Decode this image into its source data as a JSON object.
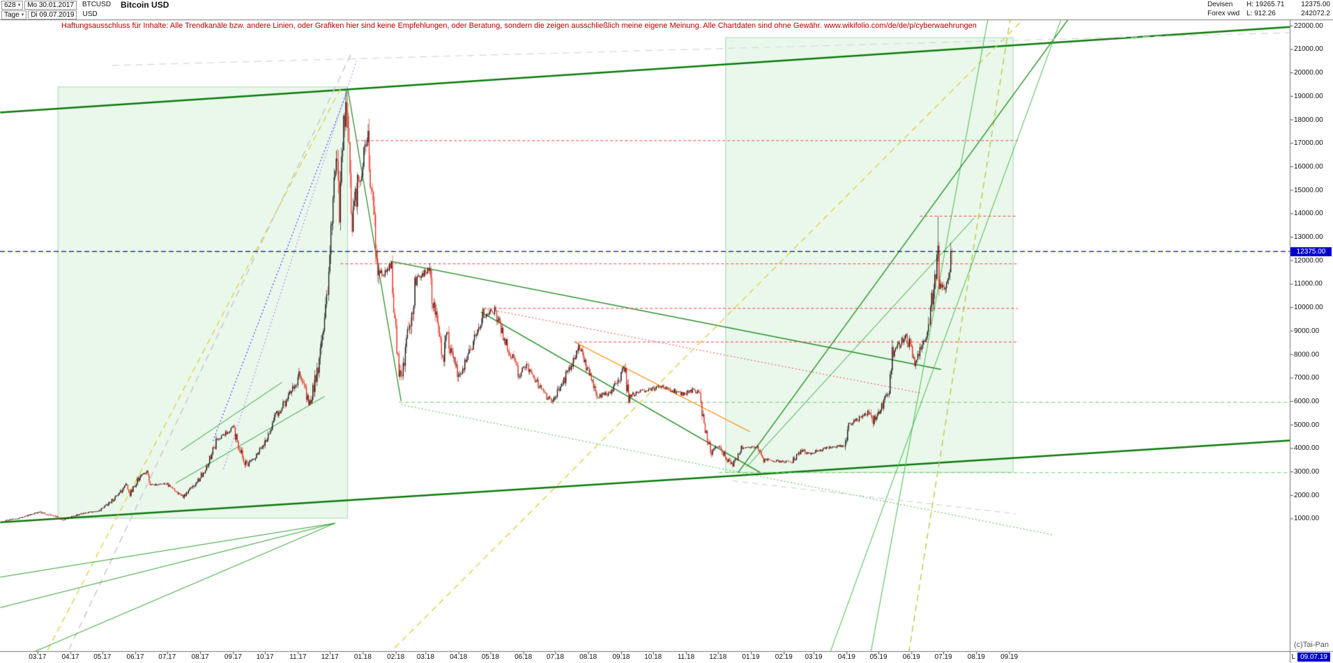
{
  "header": {
    "bars_dropdown": "628",
    "start_date": "Mo 30.01.2017",
    "symbol": "BTCUSD",
    "title": "Bitcoin USD",
    "period_dropdown": "Tage",
    "end_date": "Di 09.07.2019",
    "currency": "USD",
    "feed_line1": "Devisen",
    "feed_line2": "Forex vwd",
    "high": "H: 19265.71",
    "low": "L: 912.26",
    "last": "12375.00",
    "turnover": "242072.2"
  },
  "disclaimer": "Haftungsausschluss für Inhalte: Alle Trendkanäle bzw. andere Linien, oder Grafiken hier sind keine Empfehlungen, oder Beratung, sondern die zeigen ausschließlich meine eigene Meinung. Alle Chartdaten sind ohne Gewähr.  www.wikifolio.com/de/de/p/cyberwaehrungen",
  "watermark": "(c)Tai-Pan",
  "time_axis": {
    "months": [
      "03.17",
      "04.17",
      "05.17",
      "06.17",
      "07.17",
      "08.17",
      "09.17",
      "10.17",
      "11.17",
      "12.17",
      "01.18",
      "02.18",
      "03.18",
      "04.18",
      "05.18",
      "06.18",
      "07.18",
      "08.18",
      "09.18",
      "10.18",
      "11.18",
      "12.18",
      "01.19",
      "02.19",
      "03.19",
      "04.19",
      "05.19",
      "06.19",
      "07.19",
      "08.19",
      "09.19"
    ],
    "last_label_prefix": "L",
    "last_label": "09.07.19"
  },
  "price_axis": {
    "labels": [
      "22000.00",
      "21000.00",
      "20000.00",
      "19000.00",
      "18000.00",
      "17000.00",
      "16000.00",
      "15000.00",
      "14000.00",
      "13000.00",
      "12000.00",
      "11000.00",
      "10000.00",
      "9000.00",
      "8000.00",
      "7000.00",
      "6000.00",
      "5000.00",
      "4000.00",
      "3000.00",
      "2000.00",
      "1000.00"
    ],
    "current": "12375.00"
  },
  "chart_data": {
    "type": "candlestick",
    "title": "Bitcoin USD (BTCUSD), Tageskerzen",
    "x_range": [
      "2017-01-30",
      "2019-07-09"
    ],
    "y_axis": {
      "min": 1000,
      "max": 22000,
      "step": 1000,
      "unit": "USD"
    },
    "current_price": 12375.0,
    "period_high": 19265.71,
    "period_low": 912.26,
    "colors": {
      "up": "#141414",
      "down": "#e03020",
      "current_price_line": "#0000cc",
      "region_fill": "rgba(80,200,100,0.12)",
      "region_border": "rgba(40,160,70,0.35)"
    },
    "price_anchors": [
      [
        "2017-01-30",
        920
      ],
      [
        "2017-02-10",
        985
      ],
      [
        "2017-02-24",
        1180
      ],
      [
        "2017-03-03",
        1275
      ],
      [
        "2017-03-18",
        1080
      ],
      [
        "2017-03-25",
        950
      ],
      [
        "2017-04-10",
        1190
      ],
      [
        "2017-04-28",
        1330
      ],
      [
        "2017-05-10",
        1760
      ],
      [
        "2017-05-24",
        2440
      ],
      [
        "2017-05-27",
        2050
      ],
      [
        "2017-06-06",
        2870
      ],
      [
        "2017-06-12",
        2980
      ],
      [
        "2017-06-15",
        2420
      ],
      [
        "2017-06-30",
        2480
      ],
      [
        "2017-07-16",
        1930
      ],
      [
        "2017-08-01",
        2750
      ],
      [
        "2017-08-17",
        4380
      ],
      [
        "2017-09-01",
        4900
      ],
      [
        "2017-09-14",
        3210
      ],
      [
        "2017-09-29",
        4170
      ],
      [
        "2017-10-12",
        5440
      ],
      [
        "2017-10-21",
        6000
      ],
      [
        "2017-11-02",
        7080
      ],
      [
        "2017-11-12",
        5950
      ],
      [
        "2017-11-25",
        8750
      ],
      [
        "2017-12-07",
        16850
      ],
      [
        "2017-12-10",
        14300
      ],
      [
        "2017-12-16",
        19260
      ],
      [
        "2017-12-22",
        13660
      ],
      [
        "2017-12-28",
        15400
      ],
      [
        "2018-01-06",
        17150
      ],
      [
        "2018-01-16",
        11300
      ],
      [
        "2018-01-28",
        11800
      ],
      [
        "2018-02-05",
        6940
      ],
      [
        "2018-02-20",
        11240
      ],
      [
        "2018-03-04",
        11500
      ],
      [
        "2018-03-18",
        7870
      ],
      [
        "2018-03-21",
        8900
      ],
      [
        "2018-04-01",
        6930
      ],
      [
        "2018-04-24",
        9650
      ],
      [
        "2018-05-05",
        9850
      ],
      [
        "2018-05-28",
        7130
      ],
      [
        "2018-06-02",
        7640
      ],
      [
        "2018-06-28",
        5870
      ],
      [
        "2018-07-08",
        6770
      ],
      [
        "2018-07-24",
        8390
      ],
      [
        "2018-08-10",
        6190
      ],
      [
        "2018-08-22",
        6370
      ],
      [
        "2018-09-04",
        7360
      ],
      [
        "2018-09-08",
        6230
      ],
      [
        "2018-09-25",
        6440
      ],
      [
        "2018-10-10",
        6590
      ],
      [
        "2018-10-29",
        6300
      ],
      [
        "2018-11-07",
        6460
      ],
      [
        "2018-11-14",
        6350
      ],
      [
        "2018-11-19",
        4650
      ],
      [
        "2018-11-25",
        3780
      ],
      [
        "2018-12-01",
        4140
      ],
      [
        "2018-12-15",
        3230
      ],
      [
        "2018-12-24",
        4030
      ],
      [
        "2019-01-06",
        4020
      ],
      [
        "2019-01-13",
        3520
      ],
      [
        "2019-01-28",
        3430
      ],
      [
        "2019-02-08",
        3400
      ],
      [
        "2019-02-18",
        3900
      ],
      [
        "2019-02-24",
        3770
      ],
      [
        "2019-03-16",
        4030
      ],
      [
        "2019-03-30",
        4100
      ],
      [
        "2019-04-03",
        4970
      ],
      [
        "2019-04-23",
        5570
      ],
      [
        "2019-04-26",
        5150
      ],
      [
        "2019-05-11",
        6380
      ],
      [
        "2019-05-14",
        7980
      ],
      [
        "2019-05-27",
        8760
      ],
      [
        "2019-05-31",
        8280
      ],
      [
        "2019-06-04",
        7700
      ],
      [
        "2019-06-16",
        8990
      ],
      [
        "2019-06-22",
        10760
      ],
      [
        "2019-06-26",
        12910
      ],
      [
        "2019-06-27",
        11160
      ],
      [
        "2019-07-02",
        10580
      ],
      [
        "2019-07-09",
        12375
      ]
    ],
    "forced_wicks": [
      {
        "date": "2017-02-04",
        "low": 912.26
      },
      {
        "date": "2017-12-16",
        "high": 19265.71
      },
      {
        "date": "2019-06-26",
        "high": 13880
      }
    ],
    "regions": [
      {
        "from": "2017-03-20",
        "to": "2017-12-18",
        "price_from": 1000,
        "price_to": 19400
      },
      {
        "from": "2018-12-08",
        "to": "2019-09-05",
        "price_from": 2950,
        "price_to": 21500
      }
    ],
    "trendlines": [
      {
        "x1": "2017-01-25",
        "p1": 18300,
        "x2": "2020-05-24",
        "p2": 21950,
        "color": "#0a7a0a",
        "w": 2.5
      },
      {
        "x1": "2017-01-25",
        "p1": 835,
        "x2": "2020-05-24",
        "p2": 4330,
        "color": "#0a7a0a",
        "w": 2.5
      },
      {
        "x1": "2018-01-27",
        "p1": 11960,
        "x2": "2019-06-29",
        "p2": 7350,
        "color": "#1e8c1e",
        "w": 1.4
      },
      {
        "x1": "2018-04-22",
        "p1": 9800,
        "x2": "2019-01-10",
        "p2": 2950,
        "color": "#1e8c1e",
        "w": 1.4
      },
      {
        "x1": "2017-12-18",
        "p1": 19260,
        "x2": "2018-02-06",
        "p2": 6000,
        "color": "#1e8c1e",
        "w": 1.2
      },
      {
        "x1": "2018-02-06",
        "p1": 5850,
        "x2": "2019-10-12",
        "p2": 300,
        "color": "#44bb44",
        "dash": [
          2,
          3
        ],
        "w": 1
      },
      {
        "x1": "2018-02-04",
        "p1": 5950,
        "x2": "2020-05-24",
        "p2": 5950,
        "color": "#66cc66",
        "dash": [
          5,
          4
        ],
        "w": 1
      },
      {
        "x1": "2018-12-02",
        "p1": 2950,
        "x2": "2020-05-24",
        "p2": 2950,
        "color": "#66cc66",
        "dash": [
          5,
          4
        ],
        "w": 1
      },
      {
        "x1": "2017-12-26",
        "p1": 17100,
        "x2": "2019-09-09",
        "p2": 17100,
        "color": "#f04040",
        "dash": [
          4,
          3
        ],
        "w": 1
      },
      {
        "x1": "2019-06-09",
        "p1": 13880,
        "x2": "2019-09-09",
        "p2": 13880,
        "color": "#f04040",
        "dash": [
          4,
          3
        ],
        "w": 1
      },
      {
        "x1": "2017-12-11",
        "p1": 11850,
        "x2": "2019-09-09",
        "p2": 11850,
        "color": "#f04040",
        "dash": [
          4,
          3
        ],
        "w": 1
      },
      {
        "x1": "2018-04-25",
        "p1": 9950,
        "x2": "2019-09-09",
        "p2": 9950,
        "color": "#f04040",
        "dash": [
          4,
          3
        ],
        "w": 1
      },
      {
        "x1": "2018-07-19",
        "p1": 8520,
        "x2": "2019-09-09",
        "p2": 8520,
        "color": "#f04040",
        "dash": [
          4,
          3
        ],
        "w": 1
      },
      {
        "x1": "2018-07-19",
        "p1": 8520,
        "x2": "2018-12-31",
        "p2": 4700,
        "color": "#ff8800",
        "w": 1.3
      },
      {
        "x1": "2018-04-25",
        "p1": 9950,
        "x2": "2019-06-09",
        "p2": 6350,
        "color": "#ee4444",
        "dash": [
          2,
          3
        ],
        "w": 1
      },
      {
        "x1": "2017-08-13",
        "p1": 4300,
        "x2": "2017-12-18",
        "p2": 19265,
        "color": "#4444ff",
        "dash": [
          2,
          3
        ],
        "w": 1.2
      },
      {
        "x1": "2017-08-23",
        "p1": 3100,
        "x2": "2017-12-26",
        "p2": 20500,
        "color": "#9977ee",
        "dash": [
          2,
          3
        ],
        "w": 1
      },
      {
        "x1": "2017-03-06",
        "p1": -5000,
        "x2": "2017-12-12",
        "p2": 19400,
        "color": "#e0d24a",
        "dash": [
          9,
          6
        ],
        "w": 1.4
      },
      {
        "x1": "2018-01-17",
        "p1": -5150,
        "x2": "2019-09-15",
        "p2": 22300,
        "color": "#e0d24a",
        "dash": [
          9,
          6
        ],
        "w": 1.4
      },
      {
        "x1": "2019-05-28",
        "p1": -5150,
        "x2": "2019-09-02",
        "p2": 22300,
        "color": "#b8cc3a",
        "dash": [
          9,
          6
        ],
        "w": 1.4
      },
      {
        "x1": "2019-03-13",
        "p1": -5150,
        "x2": "2019-10-20",
        "p2": 22300,
        "color": "#44bb44",
        "w": 1
      },
      {
        "x1": "2019-04-22",
        "p1": -5150,
        "x2": "2019-08-12",
        "p2": 22300,
        "color": "#44bb44",
        "w": 1
      },
      {
        "x1": "2018-12-20",
        "p1": 2950,
        "x2": "2019-10-27",
        "p2": 22300,
        "color": "#1e8c1e",
        "w": 1.3
      },
      {
        "x1": "2018-12-28",
        "p1": 3200,
        "x2": "2019-07-30",
        "p2": 13800,
        "color": "#2ea02e",
        "w": 1
      },
      {
        "x1": "2017-03-21",
        "p1": -5500,
        "x2": "2017-12-21",
        "p2": 20800,
        "color": "#c9c9c9",
        "dash": [
          10,
          7
        ],
        "w": 1.5
      },
      {
        "x1": "2017-05-10",
        "p1": 20300,
        "x2": "2020-05-24",
        "p2": 21700,
        "color": "#d6d6d6",
        "dash": [
          10,
          7
        ],
        "w": 1.2
      },
      {
        "x1": "2018-12-15",
        "p1": 2600,
        "x2": "2019-09-07",
        "p2": 1200,
        "color": "#cccccc",
        "dash": [
          8,
          6
        ],
        "w": 1
      },
      {
        "x1": "2017-01-25",
        "p1": -2800,
        "x2": "2017-12-06",
        "p2": 800,
        "color": "#2ea02e",
        "w": 1
      },
      {
        "x1": "2017-01-25",
        "p1": -5300,
        "x2": "2017-12-06",
        "p2": 800,
        "color": "#2ea02e",
        "w": 1
      },
      {
        "x1": "2017-01-25",
        "p1": -1500,
        "x2": "2017-12-06",
        "p2": 800,
        "color": "#2ea02e",
        "w": 1
      },
      {
        "x1": "2017-07-09",
        "p1": 2500,
        "x2": "2017-11-26",
        "p2": 6200,
        "color": "#2ea02e",
        "w": 1
      },
      {
        "x1": "2017-07-14",
        "p1": 3900,
        "x2": "2017-10-17",
        "p2": 6800,
        "color": "#2ea02e",
        "w": 1
      }
    ]
  }
}
